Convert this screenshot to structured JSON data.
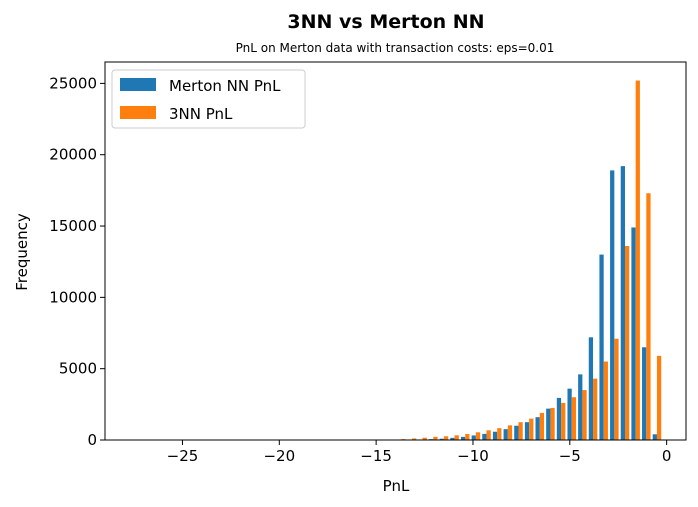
{
  "chart_data": {
    "type": "bar",
    "title": "3NN vs Merton NN",
    "subtitle": "PnL on Merton data with transaction costs: eps=0.01",
    "xlabel": "PnL",
    "ylabel": "Frequency",
    "xlim": [
      -29.0,
      1.0
    ],
    "ylim": [
      0,
      26500
    ],
    "xticks": [
      -25,
      -20,
      -15,
      -10,
      -5,
      0
    ],
    "xtick_labels": [
      "−25",
      "−20",
      "−15",
      "−10",
      "−5",
      "0"
    ],
    "yticks": [
      0,
      5000,
      10000,
      15000,
      20000,
      25000
    ],
    "ytick_labels": [
      "0",
      "5000",
      "10000",
      "15000",
      "20000",
      "25000"
    ],
    "legend_position": "top-left",
    "grid": false,
    "bin_centers": [
      -28.55,
      -28.0,
      -27.45,
      -26.9,
      -26.35,
      -25.8,
      -25.25,
      -24.7,
      -24.15,
      -23.6,
      -23.05,
      -22.5,
      -21.95,
      -21.4,
      -20.85,
      -20.3,
      -19.75,
      -19.2,
      -18.65,
      -18.1,
      -17.55,
      -17.0,
      -16.45,
      -15.9,
      -15.35,
      -14.8,
      -14.25,
      -13.7,
      -13.15,
      -12.6,
      -12.05,
      -11.5,
      -10.95,
      -10.4,
      -9.85,
      -9.3,
      -8.75,
      -8.2,
      -7.65,
      -7.1,
      -6.55,
      -6.0,
      -5.45,
      -4.9,
      -4.35,
      -3.8,
      -3.25,
      -2.7,
      -2.15,
      -1.6,
      -1.05,
      -0.5
    ],
    "series": [
      {
        "name": "Merton NN PnL",
        "color": "#1f77b4",
        "values": [
          0,
          0,
          0,
          0,
          0,
          0,
          0,
          0,
          0,
          0,
          0,
          0,
          0,
          0,
          0,
          0,
          0,
          0,
          0,
          0,
          0,
          0,
          0,
          0,
          0,
          0,
          0,
          0,
          20,
          30,
          60,
          90,
          150,
          220,
          320,
          430,
          580,
          760,
          1000,
          1250,
          1600,
          2200,
          2950,
          3600,
          4600,
          7200,
          13000,
          18900,
          19200,
          14900,
          6500,
          400
        ]
      },
      {
        "name": "3NN PnL",
        "color": "#ff7f0e",
        "values": [
          0,
          0,
          0,
          0,
          0,
          0,
          0,
          0,
          0,
          0,
          0,
          0,
          0,
          0,
          0,
          0,
          0,
          0,
          0,
          0,
          0,
          0,
          0,
          0,
          0,
          0,
          20,
          60,
          110,
          160,
          220,
          260,
          330,
          420,
          540,
          680,
          830,
          1030,
          1250,
          1500,
          1900,
          2250,
          2600,
          3000,
          3500,
          4300,
          5500,
          7100,
          13600,
          25200,
          17300,
          5900
        ]
      }
    ]
  }
}
